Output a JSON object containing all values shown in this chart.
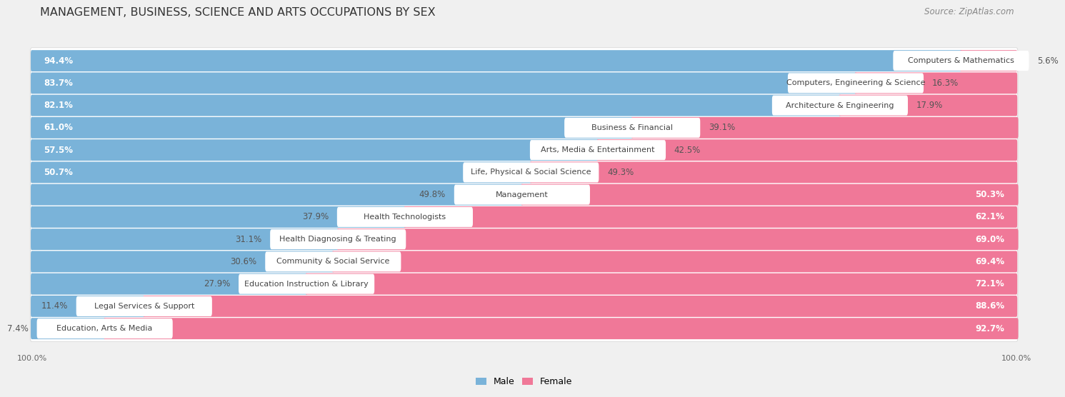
{
  "title": "MANAGEMENT, BUSINESS, SCIENCE AND ARTS OCCUPATIONS BY SEX",
  "source": "Source: ZipAtlas.com",
  "categories": [
    "Computers & Mathematics",
    "Computers, Engineering & Science",
    "Architecture & Engineering",
    "Business & Financial",
    "Arts, Media & Entertainment",
    "Life, Physical & Social Science",
    "Management",
    "Health Technologists",
    "Health Diagnosing & Treating",
    "Community & Social Service",
    "Education Instruction & Library",
    "Legal Services & Support",
    "Education, Arts & Media"
  ],
  "male": [
    94.4,
    83.7,
    82.1,
    61.0,
    57.5,
    50.7,
    49.8,
    37.9,
    31.1,
    30.6,
    27.9,
    11.4,
    7.4
  ],
  "female": [
    5.6,
    16.3,
    17.9,
    39.1,
    42.5,
    49.3,
    50.3,
    62.1,
    69.0,
    69.4,
    72.1,
    88.6,
    92.7
  ],
  "male_color": "#7ab3d9",
  "female_color": "#f07898",
  "male_label": "Male",
  "female_label": "Female",
  "bg_color": "#f0f0f0",
  "row_bg_color": "#ffffff",
  "title_fontsize": 11.5,
  "bar_fontsize": 8.5,
  "label_fontsize": 8.0,
  "source_fontsize": 8.5
}
